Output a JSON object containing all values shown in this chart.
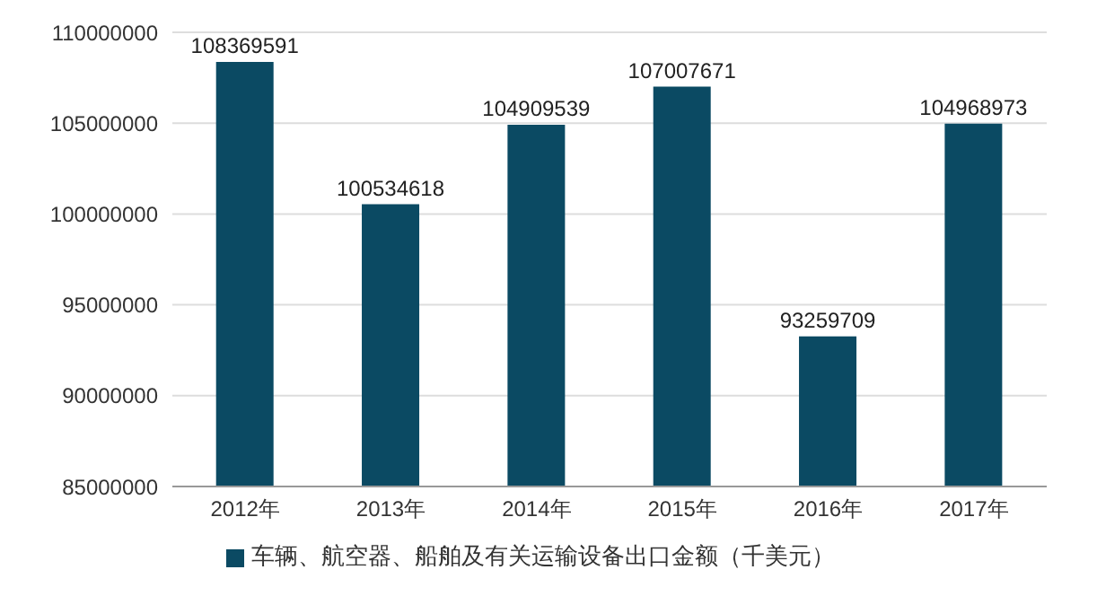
{
  "chart_data": {
    "type": "bar",
    "categories": [
      "2012年",
      "2013年",
      "2014年",
      "2015年",
      "2016年",
      "2017年"
    ],
    "series": [
      {
        "name": "车辆、航空器、船舶及有关运输设备出口金额（千美元）",
        "color": "#0b4a63",
        "values": [
          108369591,
          100534618,
          104909539,
          107007671,
          93259709,
          104968973
        ]
      }
    ],
    "ylim": [
      85000000,
      110000000
    ],
    "yticks": [
      85000000,
      90000000,
      95000000,
      100000000,
      105000000,
      110000000
    ],
    "grid": "y",
    "legend": "bottom",
    "data_labels": true
  }
}
